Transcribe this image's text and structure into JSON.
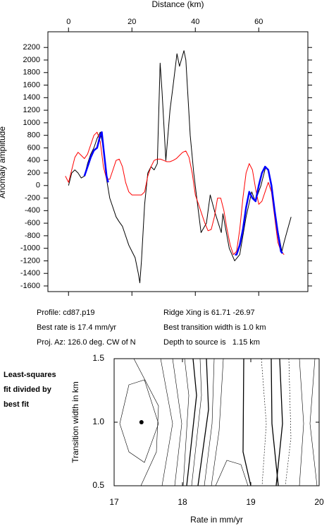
{
  "chart_data": [
    {
      "type": "line",
      "x_label": "Distance (km)",
      "y_label": "Anomaly amplitude",
      "xlim": [
        -6.5,
        75.5
      ],
      "xticks": [
        0,
        20,
        40,
        60
      ],
      "ylim": [
        -1690,
        2450
      ],
      "yticks": [
        -1600,
        -1400,
        -1200,
        -1000,
        -800,
        -600,
        -400,
        -200,
        0,
        200,
        400,
        600,
        800,
        1000,
        1200,
        1400,
        1600,
        1800,
        2000,
        2200
      ],
      "series": [
        {
          "color": "#000000",
          "x": [
            0,
            1,
            2,
            3,
            4,
            5,
            6,
            7,
            8,
            9,
            10,
            11,
            12,
            13,
            14,
            15,
            16,
            17,
            18,
            19,
            20,
            21,
            22,
            22.5,
            23,
            24,
            25,
            26,
            27,
            28,
            28.9,
            29.5,
            30.7,
            32,
            33,
            34.2,
            35,
            36.4,
            37,
            38.4,
            39.5,
            40.7,
            41.8,
            43.5,
            44.7,
            46,
            48.2,
            48.7,
            50.7,
            52.4,
            54,
            56,
            57.8,
            58.9,
            60.7,
            62.2,
            62.9,
            64,
            65.6,
            67.3,
            68,
            69.1,
            70.2
          ],
          "values": [
            0,
            200,
            250,
            200,
            120,
            150,
            350,
            500,
            600,
            750,
            850,
            600,
            100,
            -200,
            -350,
            -500,
            -580,
            -650,
            -800,
            -950,
            -1050,
            -1150,
            -1400,
            -1550,
            -1200,
            -300,
            200,
            300,
            250,
            350,
            1950,
            1500,
            400,
            1200,
            1600,
            2100,
            1900,
            2150,
            2000,
            800,
            200,
            -300,
            -750,
            -600,
            -150,
            -400,
            -750,
            -450,
            -1000,
            -1200,
            -1100,
            -500,
            -100,
            -250,
            0,
            300,
            250,
            0,
            -600,
            -1050,
            -900,
            -700,
            -500
          ]
        },
        {
          "color": "#ff0000",
          "x": [
            -1,
            0,
            1,
            2,
            3,
            4,
            5,
            6,
            7,
            8,
            9,
            10,
            11,
            12,
            13,
            14,
            15,
            16,
            17,
            18,
            19,
            20,
            21,
            22,
            23,
            24,
            25,
            26,
            27,
            28,
            29,
            30,
            31,
            32,
            33,
            34,
            35,
            36,
            37,
            38,
            39,
            40,
            41,
            42,
            43,
            44,
            45,
            46,
            47,
            48,
            49,
            50,
            51,
            52,
            53,
            54,
            55,
            56,
            57,
            58,
            59,
            60,
            61,
            62,
            63,
            64,
            65,
            66,
            67,
            68
          ],
          "values": [
            150,
            50,
            250,
            450,
            530,
            480,
            430,
            500,
            650,
            800,
            850,
            700,
            300,
            100,
            100,
            250,
            400,
            420,
            300,
            50,
            -100,
            -150,
            -150,
            -150,
            -150,
            -100,
            150,
            300,
            400,
            420,
            420,
            400,
            380,
            380,
            400,
            430,
            480,
            530,
            550,
            450,
            200,
            -150,
            -300,
            -450,
            -600,
            -720,
            -700,
            -500,
            -200,
            -200,
            -400,
            -700,
            -950,
            -1100,
            -1050,
            -700,
            -200,
            200,
            350,
            250,
            -50,
            -300,
            -250,
            -100,
            50,
            -100,
            -500,
            -900,
            -1050,
            -1100
          ]
        },
        {
          "color": "#0000ff",
          "x": [
            5,
            6,
            7,
            8,
            9,
            10,
            10.5,
            11,
            12,
            12.5,
            30,
            52.5,
            53,
            54,
            55,
            56,
            57,
            58,
            59,
            60,
            61,
            62,
            63,
            64,
            65,
            66,
            67,
            67.5
          ],
          "values": [
            150,
            300,
            450,
            560,
            600,
            800,
            850,
            600,
            150,
            50,
            null,
            -1100,
            -1100,
            -950,
            -700,
            -350,
            -100,
            -200,
            -250,
            0,
            200,
            300,
            250,
            0,
            -400,
            -750,
            -1050,
            -1080
          ]
        }
      ]
    },
    {
      "type": "contour",
      "x_label": "Rate in mm/yr",
      "y_label": "Transition width in km",
      "note": [
        "Least-squares",
        "fit divided by",
        "best fit"
      ],
      "xlim": [
        17,
        20
      ],
      "xticks": [
        17,
        18,
        19,
        20
      ],
      "ylim": [
        0.5,
        1.5
      ],
      "yticks": [
        0.5,
        {
          "value": 1,
          "label": "1.0"
        },
        1.5
      ],
      "points": {
        "x": [
          17.4
        ],
        "values": [
          1
        ]
      }
    }
  ],
  "info": {
    "profile": "Profile: cd87.p19",
    "best_rate": "Best rate is 17.4 mm/yr",
    "proj_az": "Proj. Az: 126.0 deg. CW of N",
    "ridge_xing": "Ridge Xing is 61.71 -26.97",
    "best_width": "Best transition width is 1.0 km",
    "depth": "Depth to source is   1.15 km"
  }
}
